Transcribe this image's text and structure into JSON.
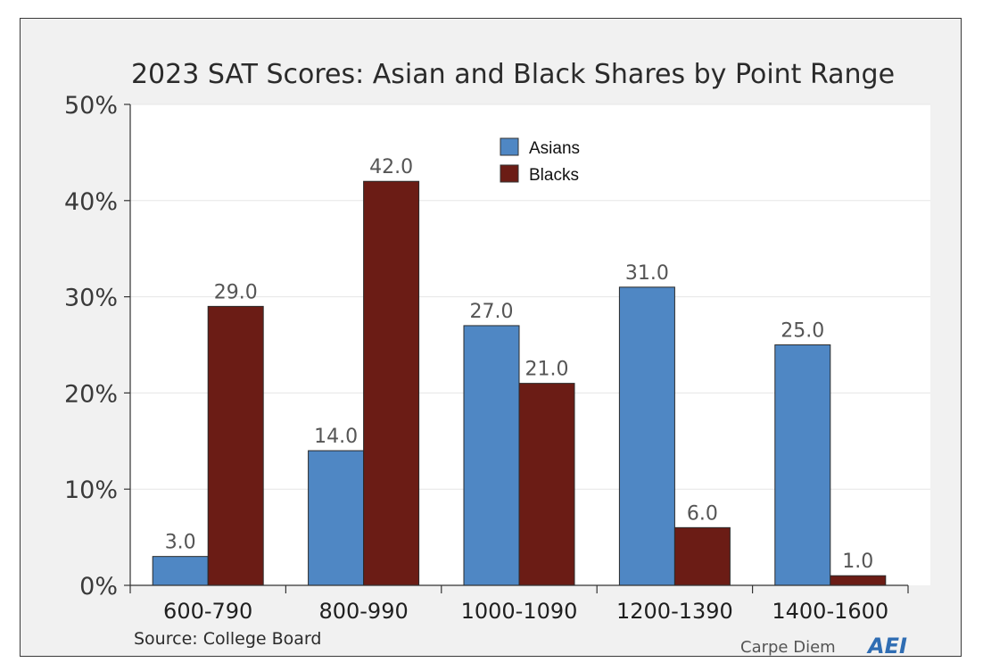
{
  "chart_data": {
    "type": "bar",
    "title": "2023 SAT Scores: Asian and Black Shares by Point Range",
    "categories": [
      "600-790",
      "800-990",
      "1000-1090",
      "1200-1390",
      "1400-1600"
    ],
    "series": [
      {
        "name": "Asians",
        "color": "#4f87c4",
        "values": [
          3.0,
          14.0,
          27.0,
          31.0,
          25.0
        ],
        "labels": [
          "3.0",
          "14.0",
          "27.0",
          "31.0",
          "25.0"
        ]
      },
      {
        "name": "Blacks",
        "color": "#6b1c15",
        "values": [
          29.0,
          42.0,
          21.0,
          6.0,
          1.0
        ],
        "labels": [
          "29.0",
          "42.0",
          "21.0",
          "6.0",
          "1.0"
        ]
      }
    ],
    "ylim": [
      0,
      50
    ],
    "yticks": [
      0,
      10,
      20,
      30,
      40,
      50
    ],
    "ytick_labels": [
      "0%",
      "10%",
      "20%",
      "30%",
      "40%",
      "50%"
    ],
    "xlabel": "",
    "ylabel": "",
    "grid": true,
    "legend_position": "top-center"
  },
  "footer": {
    "source": "Source: College Board",
    "brand_text": "Carpe Diem",
    "brand_logo_text": "AEI"
  }
}
